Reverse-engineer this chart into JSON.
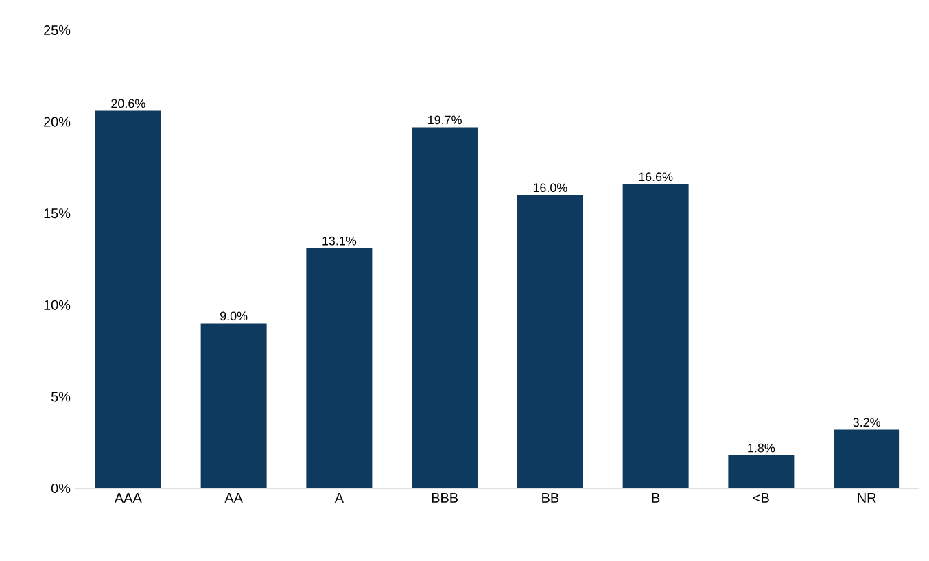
{
  "chart_data": {
    "type": "bar",
    "categories": [
      "AAA",
      "AA",
      "A",
      "BBB",
      "BB",
      "B",
      "<B",
      "NR"
    ],
    "values": [
      20.6,
      9.0,
      13.1,
      19.7,
      16.0,
      16.6,
      1.8,
      3.2
    ],
    "value_labels": [
      "20.6%",
      "9.0%",
      "13.1%",
      "19.7%",
      "16.0%",
      "16.6%",
      "1.8%",
      "3.2%"
    ],
    "color": "#0e3a5f",
    "ylim": [
      0,
      25
    ],
    "yticks": [
      {
        "value": 0,
        "label": "0%"
      },
      {
        "value": 5,
        "label": "5%"
      },
      {
        "value": 10,
        "label": "10%"
      },
      {
        "value": 15,
        "label": "15%"
      },
      {
        "value": 20,
        "label": "20%"
      },
      {
        "value": 25,
        "label": "25%"
      }
    ]
  }
}
